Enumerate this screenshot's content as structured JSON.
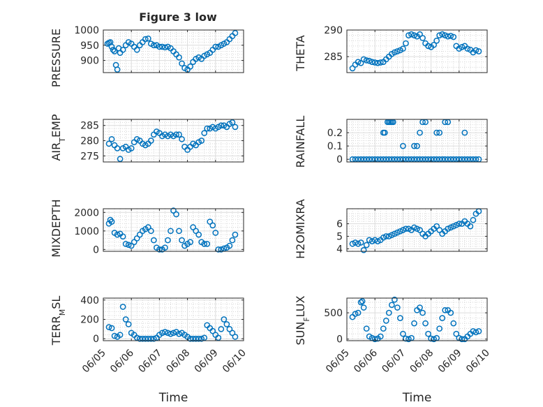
{
  "figure": {
    "title": "Figure 3 low"
  },
  "x_tick_labels": [
    "06/05",
    "06/06",
    "06/07",
    "06/08",
    "06/09",
    "06/10"
  ],
  "x_label": "Time",
  "marker_color": "#0072BD",
  "chart_data": [
    {
      "type": "scatter",
      "ylabel": "PRESSURE",
      "xlim": [
        0,
        5
      ],
      "ylim": [
        860,
        1000
      ],
      "yticks": [
        900,
        950,
        1000
      ],
      "grid": true,
      "x": [
        0.15,
        0.2,
        0.25,
        0.3,
        0.35,
        0.4,
        0.45,
        0.5,
        0.55,
        0.6,
        0.7,
        0.8,
        0.9,
        1.0,
        1.1,
        1.2,
        1.3,
        1.4,
        1.5,
        1.6,
        1.7,
        1.8,
        1.9,
        2.0,
        2.1,
        2.2,
        2.3,
        2.4,
        2.5,
        2.6,
        2.7,
        2.8,
        2.9,
        3.0,
        3.1,
        3.2,
        3.3,
        3.4,
        3.5,
        3.6,
        3.7,
        3.8,
        3.9,
        4.0,
        4.1,
        4.2,
        4.3,
        4.4,
        4.5,
        4.6,
        4.7
      ],
      "y": [
        955,
        958,
        960,
        945,
        935,
        930,
        885,
        870,
        940,
        925,
        935,
        950,
        960,
        955,
        945,
        935,
        950,
        960,
        970,
        972,
        955,
        950,
        950,
        945,
        945,
        943,
        945,
        940,
        930,
        920,
        910,
        890,
        875,
        870,
        880,
        895,
        905,
        910,
        905,
        915,
        920,
        925,
        935,
        945,
        945,
        950,
        955,
        960,
        970,
        980,
        990
      ]
    },
    {
      "type": "scatter",
      "ylabel": "THETA",
      "xlim": [
        0,
        5
      ],
      "ylim": [
        282,
        290
      ],
      "yticks": [
        285,
        290
      ],
      "grid": true,
      "x": [
        0.2,
        0.3,
        0.4,
        0.5,
        0.6,
        0.7,
        0.8,
        0.9,
        1.0,
        1.1,
        1.2,
        1.3,
        1.4,
        1.5,
        1.6,
        1.7,
        1.8,
        1.9,
        2.0,
        2.1,
        2.2,
        2.3,
        2.4,
        2.5,
        2.6,
        2.7,
        2.8,
        2.9,
        3.0,
        3.1,
        3.2,
        3.3,
        3.4,
        3.5,
        3.6,
        3.7,
        3.8,
        3.9,
        4.0,
        4.1,
        4.2,
        4.3,
        4.4,
        4.5,
        4.6,
        4.7
      ],
      "y": [
        282.8,
        283.5,
        284,
        283.8,
        284.5,
        284.3,
        284.2,
        284,
        283.9,
        283.8,
        283.9,
        284,
        284.5,
        285,
        285.5,
        285.8,
        286,
        286.2,
        286.5,
        287.5,
        289,
        289.2,
        289,
        288.8,
        289.2,
        288.5,
        287.5,
        287,
        286.8,
        287.2,
        288,
        289,
        289.2,
        289,
        288.8,
        288.9,
        288.7,
        287,
        286.5,
        286.8,
        287,
        286.5,
        286.3,
        285.8,
        286.2,
        286
      ]
    },
    {
      "type": "scatter",
      "ylabel": "AIR_TEMP",
      "xlim": [
        0,
        5
      ],
      "ylim": [
        273,
        287
      ],
      "yticks": [
        275,
        280,
        285
      ],
      "grid": true,
      "x": [
        0.2,
        0.3,
        0.4,
        0.5,
        0.6,
        0.7,
        0.8,
        0.9,
        1.0,
        1.1,
        1.2,
        1.3,
        1.4,
        1.5,
        1.6,
        1.7,
        1.8,
        1.9,
        2.0,
        2.1,
        2.2,
        2.3,
        2.4,
        2.5,
        2.6,
        2.7,
        2.8,
        2.9,
        3.0,
        3.1,
        3.2,
        3.3,
        3.4,
        3.5,
        3.6,
        3.7,
        3.8,
        3.9,
        4.0,
        4.1,
        4.2,
        4.3,
        4.4,
        4.5,
        4.6,
        4.7
      ],
      "y": [
        279,
        280.5,
        278.5,
        277.5,
        274,
        277.5,
        278,
        277,
        277.5,
        279.5,
        280.5,
        280,
        279,
        278.5,
        279,
        280,
        282,
        283,
        282.5,
        281.5,
        282,
        281.5,
        282,
        281.5,
        282,
        282,
        280.5,
        278,
        277,
        278,
        279,
        278.5,
        279.5,
        280,
        282.5,
        284,
        284,
        284.5,
        284,
        284.5,
        285,
        285,
        284.5,
        285.5,
        286,
        284.5
      ]
    },
    {
      "type": "scatter",
      "ylabel": "RAINFALL",
      "xlim": [
        0,
        5
      ],
      "ylim": [
        -0.02,
        0.3
      ],
      "yticks": [
        0,
        0.1,
        0.2
      ],
      "grid": true,
      "x": [
        0.2,
        0.3,
        0.4,
        0.5,
        0.6,
        0.7,
        0.8,
        0.9,
        1.0,
        1.1,
        1.2,
        1.3,
        1.4,
        1.5,
        1.6,
        1.7,
        1.8,
        1.9,
        2.0,
        2.1,
        2.2,
        2.3,
        2.4,
        2.5,
        2.6,
        2.7,
        2.8,
        2.9,
        3.0,
        3.1,
        3.2,
        3.3,
        3.4,
        3.5,
        3.6,
        3.7,
        3.8,
        3.9,
        4.0,
        4.1,
        4.2,
        4.3,
        4.4,
        4.5,
        4.6,
        4.7,
        1.3,
        1.35,
        1.45,
        1.5,
        1.55,
        1.6,
        1.65,
        2.0,
        2.4,
        2.5,
        2.6,
        2.7,
        2.8,
        3.2,
        3.3,
        3.5,
        3.6,
        4.2
      ],
      "y": [
        0,
        0,
        0,
        0,
        0,
        0,
        0,
        0,
        0,
        0,
        0,
        0,
        0,
        0,
        0,
        0,
        0,
        0,
        0,
        0,
        0,
        0,
        0,
        0,
        0,
        0,
        0,
        0,
        0,
        0,
        0,
        0,
        0,
        0,
        0,
        0,
        0,
        0,
        0,
        0,
        0,
        0,
        0,
        0,
        0,
        0,
        0.2,
        0.2,
        0.28,
        0.28,
        0.28,
        0.28,
        0.28,
        0.1,
        0.1,
        0.1,
        0.2,
        0.28,
        0.28,
        0.2,
        0.2,
        0.28,
        0.28,
        0.2
      ]
    },
    {
      "type": "scatter",
      "ylabel": "MIXDEPTH",
      "xlim": [
        0,
        5
      ],
      "ylim": [
        -100,
        2200
      ],
      "yticks": [
        0,
        1000,
        2000
      ],
      "grid": true,
      "x": [
        0.2,
        0.25,
        0.3,
        0.4,
        0.5,
        0.6,
        0.7,
        0.8,
        0.9,
        1.0,
        1.1,
        1.2,
        1.3,
        1.4,
        1.5,
        1.6,
        1.7,
        1.8,
        1.9,
        2.0,
        2.1,
        2.2,
        2.3,
        2.4,
        2.5,
        2.6,
        2.7,
        2.8,
        2.9,
        3.0,
        3.1,
        3.2,
        3.3,
        3.4,
        3.5,
        3.6,
        3.7,
        3.8,
        3.9,
        4.0,
        4.1,
        4.2,
        4.3,
        4.4,
        4.5,
        4.6,
        4.7
      ],
      "y": [
        1400,
        1600,
        1500,
        900,
        800,
        850,
        700,
        300,
        250,
        200,
        400,
        600,
        800,
        1000,
        1100,
        1200,
        1000,
        500,
        100,
        0,
        0,
        100,
        500,
        1000,
        2100,
        1900,
        1000,
        500,
        200,
        300,
        400,
        1200,
        1000,
        800,
        400,
        300,
        300,
        1500,
        1300,
        900,
        0,
        0,
        50,
        100,
        200,
        500,
        800
      ]
    },
    {
      "type": "scatter",
      "ylabel": "H2OMIXRA",
      "xlim": [
        0,
        5
      ],
      "ylim": [
        3.8,
        7.2
      ],
      "yticks": [
        4,
        5,
        6
      ],
      "grid": true,
      "x": [
        0.2,
        0.3,
        0.4,
        0.5,
        0.6,
        0.7,
        0.8,
        0.9,
        1.0,
        1.1,
        1.2,
        1.3,
        1.4,
        1.5,
        1.6,
        1.7,
        1.8,
        1.9,
        2.0,
        2.1,
        2.2,
        2.3,
        2.4,
        2.5,
        2.6,
        2.7,
        2.8,
        2.9,
        3.0,
        3.1,
        3.2,
        3.3,
        3.4,
        3.5,
        3.6,
        3.7,
        3.8,
        3.9,
        4.0,
        4.1,
        4.2,
        4.3,
        4.4,
        4.5,
        4.6,
        4.7
      ],
      "y": [
        4.4,
        4.5,
        4.4,
        4.5,
        3.9,
        4.3,
        4.7,
        4.6,
        4.7,
        4.6,
        4.7,
        4.9,
        5.0,
        5.0,
        5.1,
        5.2,
        5.3,
        5.4,
        5.5,
        5.6,
        5.6,
        5.5,
        5.7,
        5.6,
        5.5,
        5.2,
        5.0,
        5.2,
        5.4,
        5.6,
        5.8,
        5.5,
        5.2,
        5.4,
        5.6,
        5.7,
        5.8,
        5.9,
        6.0,
        6.0,
        6.2,
        6.0,
        5.8,
        6.3,
        6.8,
        7.0
      ]
    },
    {
      "type": "scatter",
      "ylabel": "TERR_MSL",
      "xlim": [
        0,
        5
      ],
      "ylim": [
        -20,
        420
      ],
      "yticks": [
        0,
        200,
        400
      ],
      "grid": true,
      "x": [
        0.2,
        0.3,
        0.4,
        0.5,
        0.6,
        0.7,
        0.8,
        0.9,
        1.0,
        1.1,
        1.2,
        1.3,
        1.4,
        1.5,
        1.6,
        1.7,
        1.8,
        1.9,
        2.0,
        2.1,
        2.2,
        2.3,
        2.4,
        2.5,
        2.6,
        2.7,
        2.8,
        2.9,
        3.0,
        3.1,
        3.2,
        3.3,
        3.4,
        3.5,
        3.6,
        3.7,
        3.8,
        3.9,
        4.0,
        4.1,
        4.2,
        4.3,
        4.4,
        4.5,
        4.6,
        4.7
      ],
      "y": [
        120,
        110,
        30,
        20,
        40,
        330,
        200,
        150,
        60,
        40,
        10,
        0,
        0,
        0,
        0,
        0,
        0,
        10,
        40,
        60,
        70,
        60,
        50,
        60,
        70,
        50,
        60,
        40,
        20,
        0,
        0,
        0,
        0,
        0,
        10,
        140,
        110,
        80,
        40,
        10,
        100,
        200,
        150,
        100,
        60,
        20
      ]
    },
    {
      "type": "scatter",
      "ylabel": "SUN_FLUX",
      "xlim": [
        0,
        5
      ],
      "ylim": [
        -30,
        780
      ],
      "yticks": [
        0,
        500
      ],
      "grid": true,
      "x": [
        0.2,
        0.3,
        0.4,
        0.5,
        0.55,
        0.6,
        0.7,
        0.8,
        0.9,
        1.0,
        1.1,
        1.2,
        1.3,
        1.4,
        1.5,
        1.6,
        1.7,
        1.8,
        1.9,
        2.0,
        2.1,
        2.2,
        2.3,
        2.4,
        2.5,
        2.6,
        2.7,
        2.8,
        2.9,
        3.0,
        3.1,
        3.2,
        3.3,
        3.4,
        3.5,
        3.6,
        3.7,
        3.8,
        3.9,
        4.0,
        4.1,
        4.2,
        4.3,
        4.4,
        4.5,
        4.6,
        4.7
      ],
      "y": [
        420,
        480,
        500,
        700,
        720,
        600,
        200,
        50,
        20,
        0,
        10,
        50,
        200,
        350,
        500,
        650,
        750,
        600,
        400,
        100,
        10,
        0,
        20,
        300,
        550,
        600,
        500,
        300,
        100,
        10,
        0,
        20,
        200,
        400,
        550,
        550,
        500,
        300,
        100,
        20,
        0,
        0,
        50,
        100,
        150,
        130,
        150
      ]
    }
  ]
}
